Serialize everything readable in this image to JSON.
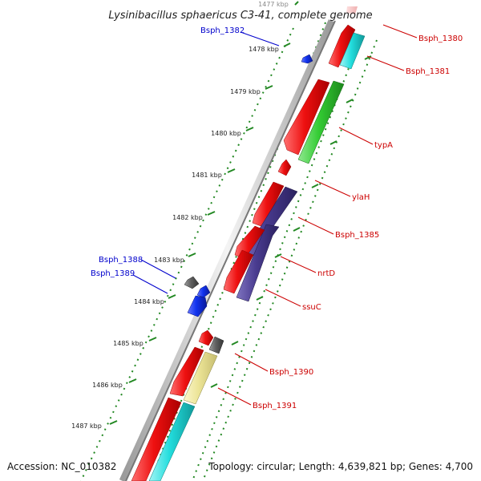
{
  "title": "Lysinibacillus sphaericus C3-41, complete genome",
  "footer": {
    "accession": "Accession: NC_010382",
    "topology": "Topology: circular; Length: 4,639,821 bp; Genes: 4,700"
  },
  "scale_labels": [
    "1477 kbp",
    "1478 kbp",
    "1479 kbp",
    "1480 kbp",
    "1481 kbp",
    "1482 kbp",
    "1483 kbp",
    "1484 kbp",
    "1485 kbp",
    "1486 kbp",
    "1487 kbp"
  ],
  "gene_labels": {
    "bsph_1380": "Bsph_1380",
    "bsph_1381": "Bsph_1381",
    "bsph_1382": "Bsph_1382",
    "typa": "typA",
    "ylah": "ylaH",
    "bsph_1385": "Bsph_1385",
    "nrtd": "nrtD",
    "ssuc": "ssuC",
    "bsph_1388": "Bsph_1388",
    "bsph_1389": "Bsph_1389",
    "bsph_1390": "Bsph_1390",
    "bsph_1391": "Bsph_1391"
  },
  "colors": {
    "red": "#ee1111",
    "cyan": "#22dddd",
    "green": "#33cc33",
    "purple": "#4a3c90",
    "blue": "#1133ee",
    "gray": "#606060",
    "khaki": "#ece496",
    "pink": "#f8c4c4",
    "tick_green": "#228822",
    "label_red": "#cc0000",
    "label_blue": "#0000cc"
  }
}
